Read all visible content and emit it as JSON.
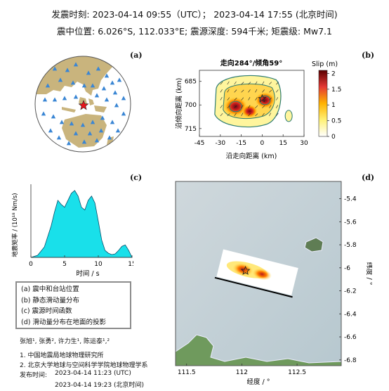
{
  "header": {
    "line1": "发震时刻: 2023-04-14 09:55（UTC）；  2023-04-14  17:55 (北京时间)",
    "line2": "震中位置: 6.026°S,  112.033°E;  震源深度: 594千米; 矩震级: Mw7.1"
  },
  "panel_labels": {
    "a": "(a)",
    "b": "(b)",
    "c": "(c)",
    "d": "(d)"
  },
  "colors": {
    "land": "#c9b47d",
    "ocean": "#ffffff",
    "station": "#3a86d4",
    "epicenter": "#e8141b",
    "stf_fill": "#19e0ea"
  },
  "chart_data": [
    {
      "type": "map",
      "panel": "a",
      "description_markers": [
        "station",
        "epicenter"
      ]
    },
    {
      "type": "heatmap",
      "panel": "b",
      "title": "走向284°/倾角59°",
      "xlabel": "沿走向距离 (km)",
      "ylabel": "沿倾向距离 (km)",
      "xlim": [
        -45,
        30
      ],
      "ylim": [
        720,
        678
      ],
      "x_ticks": [
        "-45",
        "-30",
        "-15",
        "0",
        "15",
        "30"
      ],
      "y_ticks": [
        "685",
        "700",
        "715"
      ],
      "colorbar_label": "Slip (m)",
      "colorbar_ticks": [
        "0",
        "0.5",
        "1",
        "1.5",
        "2"
      ],
      "colorbar_range": [
        0,
        2.1
      ],
      "patches": [
        {
          "x": -19,
          "y": 701,
          "slip": 2.1
        },
        {
          "x": 2,
          "y": 697,
          "slip": 1.6
        },
        {
          "x": -9,
          "y": 704,
          "slip": 1.0
        },
        {
          "x": 19,
          "y": 707,
          "slip": 0.5
        }
      ],
      "hypocenter": {
        "x": 0,
        "y": 696
      }
    },
    {
      "type": "area",
      "panel": "c",
      "xlabel": "时间 / s",
      "ylabel": "地震矩率 / (10¹⁸ Nm/s)",
      "xlim": [
        0,
        15
      ],
      "ylim": [
        0,
        10.5
      ],
      "x_ticks": [
        "0",
        "5",
        "10",
        "15"
      ],
      "x": [
        0,
        1,
        2,
        3,
        3.5,
        4,
        4.5,
        5,
        5.5,
        6,
        6.5,
        7,
        7.5,
        8,
        8.5,
        9,
        9.5,
        10,
        10.5,
        11,
        11.5,
        12,
        12.5,
        13,
        13.5,
        14,
        14.5,
        15
      ],
      "values": [
        0,
        0.3,
        1.5,
        4.5,
        6.5,
        8.2,
        7.6,
        7.2,
        8.2,
        9.2,
        9.6,
        8.8,
        7.2,
        6.8,
        8.2,
        8.8,
        7.8,
        5.2,
        2.5,
        1.0,
        0.6,
        0.4,
        0.5,
        1.0,
        1.6,
        1.8,
        1.0,
        0
      ]
    },
    {
      "type": "map",
      "panel": "d",
      "xlabel": "经度 / °",
      "ylabel": "纬度 / °",
      "xlim": [
        111.4,
        112.9
      ],
      "ylim": [
        -6.85,
        -5.25
      ],
      "x_ticks": [
        "111.5",
        "112",
        "112.5"
      ],
      "y_ticks": [
        "-5.4",
        "-5.6",
        "-5.8",
        "-6",
        "-6.2",
        "-6.4",
        "-6.6",
        "-6.8"
      ],
      "epicenter": {
        "lon": 112.033,
        "lat": -6.026
      }
    }
  ],
  "legend": {
    "items": [
      "(a) 震中和台站位置",
      "(b) 静态滑动量分布",
      "(c) 震源时间函数",
      "(d) 滑动量分布在地面的投影"
    ]
  },
  "credits": {
    "authors": "张旭¹, 张勇², 许力生¹, 陈运泰¹,²",
    "affil1": "1. 中国地震局地球物理研究所",
    "affil2": "2. 北京大学地球与空间科学学院地球物理学系",
    "release_label": "发布时间:",
    "release_utc": "2023-04-14  11:23 (UTC)",
    "release_bj": "2023-04-14  19:23 (北京时间)"
  }
}
